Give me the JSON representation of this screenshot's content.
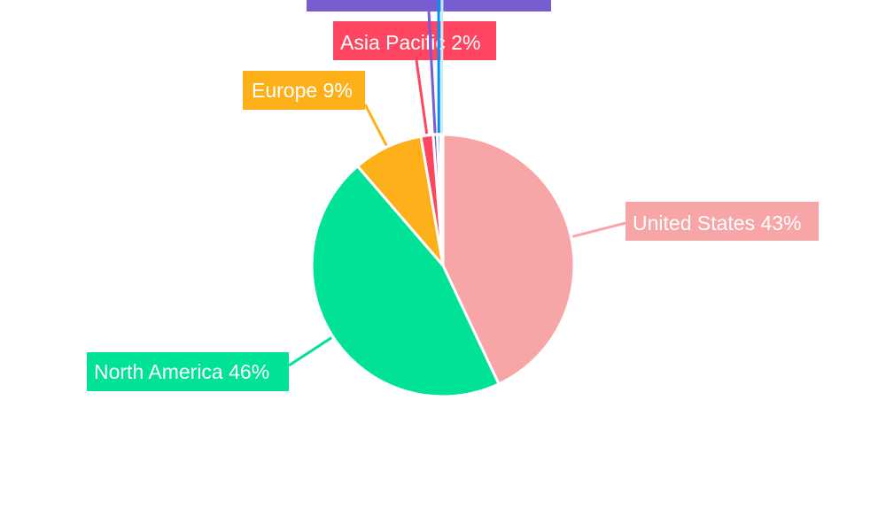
{
  "chart_data": {
    "type": "pie",
    "title": "",
    "start": "top",
    "direction": "clockwise",
    "slices": [
      {
        "label": "United States 43%",
        "value": 43.0,
        "color": "#f8a5a8"
      },
      {
        "label": "North America 46%",
        "value": 45.7,
        "color": "#00e296"
      },
      {
        "label": "Europe 9%",
        "value": 8.6,
        "color": "#feb01a"
      },
      {
        "label": "Asia Pacific 2%",
        "value": 1.5,
        "color": "#ff4560"
      },
      {
        "label": "",
        "value": 0.5,
        "color": "#775dd0"
      },
      {
        "label": "",
        "value": 0.4,
        "color": "#008ffb"
      },
      {
        "label": "",
        "value": 0.3,
        "color": "#cdeef0"
      }
    ]
  }
}
